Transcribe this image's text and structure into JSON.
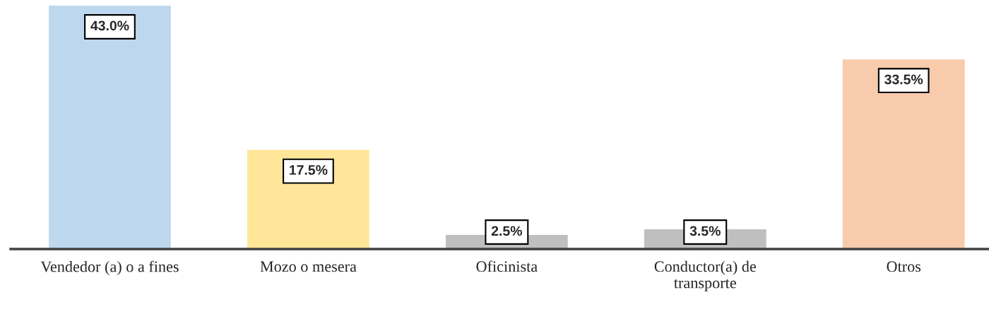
{
  "chart_data": {
    "type": "bar",
    "categories": [
      "Vendedor (a) o a fines",
      "Mozo o mesera",
      "Oficinista",
      "Conductor(a) de transporte",
      "Otros"
    ],
    "values": [
      43.0,
      17.5,
      2.5,
      3.5,
      33.5
    ],
    "colors": [
      "#bdd7ee",
      "#ffe699",
      "#bfbfbf",
      "#bfbfbf",
      "#f8cbad"
    ],
    "value_labels": [
      "43.0%",
      "17.5%",
      "2.5%",
      "3.5%",
      "33.5%"
    ],
    "ylim": [
      0,
      43
    ],
    "grid": false,
    "legend": false
  }
}
